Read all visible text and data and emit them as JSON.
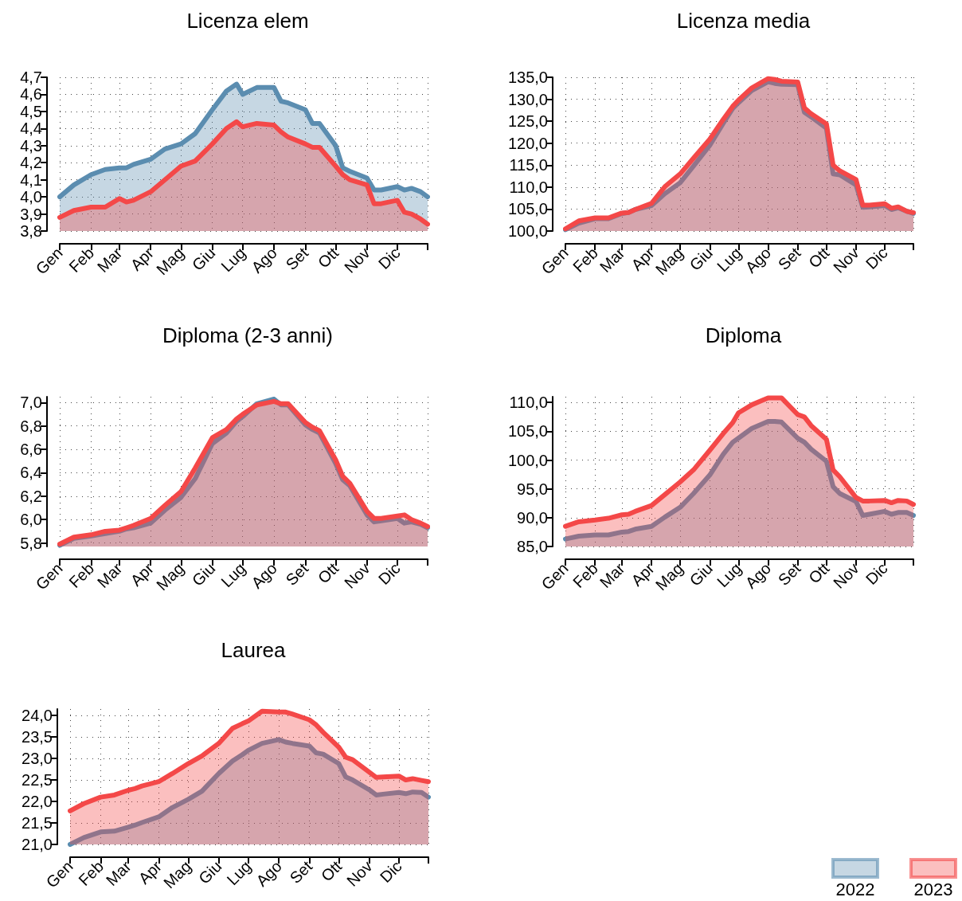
{
  "chart_data": [
    {
      "type": "area",
      "title": "Licenza elem",
      "x": [
        "--01-01",
        "--01-15",
        "--02-01",
        "--02-15",
        "--03-01",
        "--03-08",
        "--03-15",
        "--04-01",
        "--04-15",
        "--05-01",
        "--05-15",
        "--06-01",
        "--06-15",
        "--06-25",
        "--07-01",
        "--07-15",
        "--08-01",
        "--08-08",
        "--08-15",
        "--09-01",
        "--09-08",
        "--09-15",
        "--10-01",
        "--10-08",
        "--10-15",
        "--11-01",
        "--11-08",
        "--11-15",
        "--12-01",
        "--12-08",
        "--12-15",
        "--12-24",
        "--12-31"
      ],
      "series": [
        {
          "color": "#5b8db0",
          "values": [
            4.0,
            4.07,
            4.13,
            4.16,
            4.17,
            4.17,
            4.19,
            4.22,
            4.28,
            4.31,
            4.37,
            4.51,
            4.62,
            4.66,
            4.6,
            4.64,
            4.64,
            4.56,
            4.55,
            4.51,
            4.43,
            4.43,
            4.3,
            4.17,
            4.15,
            4.11,
            4.04,
            4.04,
            4.06,
            4.04,
            4.05,
            4.03,
            4.0
          ]
        },
        {
          "color": "#f44848",
          "values": [
            3.88,
            3.92,
            3.94,
            3.94,
            3.99,
            3.97,
            3.98,
            4.03,
            4.1,
            4.18,
            4.21,
            4.31,
            4.4,
            4.44,
            4.41,
            4.43,
            4.42,
            4.38,
            4.35,
            4.31,
            4.29,
            4.29,
            4.18,
            4.13,
            4.1,
            4.07,
            3.96,
            3.96,
            3.98,
            3.91,
            3.9,
            3.87,
            3.84
          ]
        }
      ],
      "xlim": [
        "--01-01",
        "--12-31"
      ],
      "xticks": [
        {
          "value": "--01-01",
          "label": "Gen"
        },
        {
          "value": "--02-01",
          "label": "Feb"
        },
        {
          "value": "--03-01",
          "label": "Mar"
        },
        {
          "value": "--04-01",
          "label": "Apr"
        },
        {
          "value": "--05-01",
          "label": "Mag"
        },
        {
          "value": "--06-01",
          "label": "Giu"
        },
        {
          "value": "--07-01",
          "label": "Lug"
        },
        {
          "value": "--08-01",
          "label": "Ago"
        },
        {
          "value": "--09-01",
          "label": "Set"
        },
        {
          "value": "--10-01",
          "label": "Ott"
        },
        {
          "value": "--11-01",
          "label": "Nov"
        },
        {
          "value": "--12-01",
          "label": "Dic"
        },
        {
          "value": "--12-31",
          "label": null
        }
      ],
      "ylim": [
        3.8,
        4.7
      ],
      "yticks": [
        {
          "value": 3.8,
          "label": "3,8"
        },
        {
          "value": 3.9,
          "label": "3,9"
        },
        {
          "value": 4.0,
          "label": "4,0"
        },
        {
          "value": 4.1,
          "label": "4,1"
        },
        {
          "value": 4.2,
          "label": "4,2"
        },
        {
          "value": 4.3,
          "label": "4,3"
        },
        {
          "value": 4.4,
          "label": "4,4"
        },
        {
          "value": 4.5,
          "label": "4,5"
        },
        {
          "value": 4.6,
          "label": "4,6"
        },
        {
          "value": 4.7,
          "label": "4,7"
        }
      ],
      "grid": true
    },
    {
      "type": "area",
      "title": "Licenza media",
      "x": [
        "--01-01",
        "--01-15",
        "--02-01",
        "--02-15",
        "--03-01",
        "--03-08",
        "--03-15",
        "--04-01",
        "--04-15",
        "--05-01",
        "--05-15",
        "--06-01",
        "--06-15",
        "--06-25",
        "--07-01",
        "--07-15",
        "--08-01",
        "--08-08",
        "--08-15",
        "--09-01",
        "--09-08",
        "--09-15",
        "--10-01",
        "--10-08",
        "--10-15",
        "--11-01",
        "--11-08",
        "--11-15",
        "--12-01",
        "--12-08",
        "--12-15",
        "--12-24",
        "--12-31"
      ],
      "series": [
        {
          "color": "#5b8db0",
          "values": [
            100.3,
            101.8,
            102.8,
            102.8,
            104.0,
            104.2,
            104.9,
            105.8,
            108.5,
            111.0,
            114.8,
            119.5,
            124.5,
            127.9,
            129.2,
            132.0,
            134.0,
            133.6,
            133.4,
            133.3,
            127.0,
            126.0,
            123.4,
            113.0,
            112.8,
            110.5,
            105.4,
            105.5,
            105.8,
            104.9,
            105.3,
            104.5,
            104.0
          ]
        },
        {
          "color": "#f44848",
          "values": [
            100.5,
            102.3,
            103.0,
            103.0,
            104.1,
            104.2,
            104.9,
            106.3,
            110.1,
            113.0,
            116.6,
            120.9,
            125.4,
            128.4,
            129.8,
            132.6,
            134.7,
            134.5,
            134.1,
            133.9,
            128.0,
            126.7,
            124.4,
            115.0,
            113.7,
            111.7,
            105.9,
            105.9,
            106.2,
            105.2,
            105.5,
            104.5,
            104.2
          ]
        }
      ],
      "xlim": [
        "--01-01",
        "--12-31"
      ],
      "xticks": [
        {
          "value": "--01-01",
          "label": "Gen"
        },
        {
          "value": "--02-01",
          "label": "Feb"
        },
        {
          "value": "--03-01",
          "label": "Mar"
        },
        {
          "value": "--04-01",
          "label": "Apr"
        },
        {
          "value": "--05-01",
          "label": "Mag"
        },
        {
          "value": "--06-01",
          "label": "Giu"
        },
        {
          "value": "--07-01",
          "label": "Lug"
        },
        {
          "value": "--08-01",
          "label": "Ago"
        },
        {
          "value": "--09-01",
          "label": "Set"
        },
        {
          "value": "--10-01",
          "label": "Ott"
        },
        {
          "value": "--11-01",
          "label": "Nov"
        },
        {
          "value": "--12-01",
          "label": "Dic"
        },
        {
          "value": "--12-31",
          "label": null
        }
      ],
      "ylim": [
        100,
        135
      ],
      "yticks": [
        {
          "value": 100,
          "label": "100,0"
        },
        {
          "value": 105,
          "label": "105,0"
        },
        {
          "value": 110,
          "label": "110,0"
        },
        {
          "value": 115,
          "label": "115,0"
        },
        {
          "value": 120,
          "label": "120,0"
        },
        {
          "value": 125,
          "label": "125,0"
        },
        {
          "value": 130,
          "label": "130,0"
        },
        {
          "value": 135,
          "label": "135,0"
        }
      ],
      "grid": true
    },
    {
      "type": "area",
      "title": "Diploma (2-3 anni)",
      "x": [
        "--01-01",
        "--01-15",
        "--02-01",
        "--02-15",
        "--03-01",
        "--03-08",
        "--03-15",
        "--04-01",
        "--04-15",
        "--05-01",
        "--05-15",
        "--06-01",
        "--06-15",
        "--06-25",
        "--07-01",
        "--07-15",
        "--08-01",
        "--08-08",
        "--08-15",
        "--09-01",
        "--09-08",
        "--09-15",
        "--10-01",
        "--10-08",
        "--10-15",
        "--11-01",
        "--11-08",
        "--11-15",
        "--12-01",
        "--12-08",
        "--12-15",
        "--12-24",
        "--12-31"
      ],
      "series": [
        {
          "color": "#5b8db0",
          "values": [
            5.78,
            5.84,
            5.86,
            5.88,
            5.9,
            5.92,
            5.93,
            5.97,
            6.08,
            6.19,
            6.35,
            6.65,
            6.74,
            6.84,
            6.88,
            6.99,
            7.03,
            6.98,
            6.98,
            6.81,
            6.77,
            6.74,
            6.48,
            6.34,
            6.29,
            6.04,
            5.98,
            5.99,
            6.01,
            5.97,
            5.98,
            5.96,
            5.93
          ]
        },
        {
          "color": "#f44848",
          "values": [
            5.79,
            5.85,
            5.87,
            5.9,
            5.91,
            5.93,
            5.95,
            6.01,
            6.12,
            6.24,
            6.44,
            6.7,
            6.77,
            6.86,
            6.9,
            6.98,
            7.01,
            6.99,
            6.99,
            6.83,
            6.79,
            6.76,
            6.51,
            6.37,
            6.31,
            6.07,
            6.01,
            6.01,
            6.03,
            6.04,
            6.0,
            5.97,
            5.94
          ]
        }
      ],
      "xlim": [
        "--01-01",
        "--12-31"
      ],
      "xticks": [
        {
          "value": "--01-01",
          "label": "Gen"
        },
        {
          "value": "--02-01",
          "label": "Feb"
        },
        {
          "value": "--03-01",
          "label": "Mar"
        },
        {
          "value": "--04-01",
          "label": "Apr"
        },
        {
          "value": "--05-01",
          "label": "Mag"
        },
        {
          "value": "--06-01",
          "label": "Giu"
        },
        {
          "value": "--07-01",
          "label": "Lug"
        },
        {
          "value": "--08-01",
          "label": "Ago"
        },
        {
          "value": "--09-01",
          "label": "Set"
        },
        {
          "value": "--10-01",
          "label": "Ott"
        },
        {
          "value": "--11-01",
          "label": "Nov"
        },
        {
          "value": "--12-01",
          "label": "Dic"
        },
        {
          "value": "--12-31",
          "label": null
        }
      ],
      "ylim": [
        5.77,
        7.05
      ],
      "yticks": [
        {
          "value": 5.8,
          "label": "5,8"
        },
        {
          "value": 6.0,
          "label": "6,0"
        },
        {
          "value": 6.2,
          "label": "6,2"
        },
        {
          "value": 6.4,
          "label": "6,4"
        },
        {
          "value": 6.6,
          "label": "6,6"
        },
        {
          "value": 6.8,
          "label": "6,8"
        },
        {
          "value": 7.0,
          "label": "7,0"
        }
      ],
      "grid": true
    },
    {
      "type": "area",
      "title": "Diploma",
      "x": [
        "--01-01",
        "--01-15",
        "--02-01",
        "--02-15",
        "--03-01",
        "--03-08",
        "--03-15",
        "--04-01",
        "--04-15",
        "--05-01",
        "--05-15",
        "--06-01",
        "--06-15",
        "--06-25",
        "--07-01",
        "--07-15",
        "--08-01",
        "--08-08",
        "--08-15",
        "--09-01",
        "--09-08",
        "--09-15",
        "--10-01",
        "--10-08",
        "--10-15",
        "--11-01",
        "--11-08",
        "--11-15",
        "--12-01",
        "--12-08",
        "--12-15",
        "--12-24",
        "--12-31"
      ],
      "series": [
        {
          "color": "#5b8db0",
          "values": [
            86.3,
            86.8,
            87.0,
            87.0,
            87.5,
            87.6,
            88.0,
            88.5,
            90.1,
            91.8,
            94.2,
            97.4,
            101.0,
            103.1,
            103.8,
            105.5,
            106.7,
            106.7,
            106.6,
            103.8,
            103.1,
            101.9,
            99.8,
            95.4,
            94.2,
            92.8,
            90.4,
            90.6,
            91.1,
            90.6,
            90.9,
            90.9,
            90.4
          ]
        },
        {
          "color": "#f44848",
          "values": [
            88.5,
            89.3,
            89.6,
            89.9,
            90.5,
            90.6,
            91.1,
            92.1,
            94.0,
            96.2,
            98.3,
            101.7,
            104.6,
            106.5,
            108.2,
            109.6,
            110.8,
            110.8,
            110.8,
            107.9,
            107.5,
            106.0,
            103.6,
            98.3,
            97.1,
            93.5,
            92.9,
            92.9,
            93.0,
            92.6,
            93.0,
            92.9,
            92.3
          ]
        }
      ],
      "xlim": [
        "--01-01",
        "--12-31"
      ],
      "xticks": [
        {
          "value": "--01-01",
          "label": "Gen"
        },
        {
          "value": "--02-01",
          "label": "Feb"
        },
        {
          "value": "--03-01",
          "label": "Mar"
        },
        {
          "value": "--04-01",
          "label": "Apr"
        },
        {
          "value": "--05-01",
          "label": "Mag"
        },
        {
          "value": "--06-01",
          "label": "Giu"
        },
        {
          "value": "--07-01",
          "label": "Lug"
        },
        {
          "value": "--08-01",
          "label": "Ago"
        },
        {
          "value": "--09-01",
          "label": "Set"
        },
        {
          "value": "--10-01",
          "label": "Ott"
        },
        {
          "value": "--11-01",
          "label": "Nov"
        },
        {
          "value": "--12-01",
          "label": "Dic"
        },
        {
          "value": "--12-31",
          "label": null
        }
      ],
      "ylim": [
        85,
        111
      ],
      "yticks": [
        {
          "value": 85,
          "label": "85,0"
        },
        {
          "value": 90,
          "label": "90,0"
        },
        {
          "value": 95,
          "label": "95,0"
        },
        {
          "value": 100,
          "label": "100,0"
        },
        {
          "value": 105,
          "label": "105,0"
        },
        {
          "value": 110,
          "label": "110,0"
        }
      ],
      "grid": true
    },
    {
      "type": "area",
      "title": "Laurea",
      "x": [
        "--01-01",
        "--01-15",
        "--02-01",
        "--02-15",
        "--03-01",
        "--03-08",
        "--03-15",
        "--04-01",
        "--04-15",
        "--05-01",
        "--05-15",
        "--06-01",
        "--06-15",
        "--06-25",
        "--07-01",
        "--07-15",
        "--08-01",
        "--08-08",
        "--08-15",
        "--09-01",
        "--09-08",
        "--09-15",
        "--10-01",
        "--10-08",
        "--10-15",
        "--11-01",
        "--11-08",
        "--11-15",
        "--12-01",
        "--12-08",
        "--12-15",
        "--12-24",
        "--12-31"
      ],
      "series": [
        {
          "name": "2022",
          "color": "#5b8db0",
          "values": [
            21.0,
            21.16,
            21.29,
            21.31,
            21.4,
            21.45,
            21.51,
            21.64,
            21.86,
            22.05,
            22.24,
            22.65,
            22.94,
            23.09,
            23.19,
            23.35,
            23.44,
            23.38,
            23.35,
            23.29,
            23.13,
            23.1,
            22.88,
            22.57,
            22.5,
            22.27,
            22.15,
            22.17,
            22.21,
            22.18,
            22.22,
            22.21,
            22.1
          ]
        },
        {
          "name": "2023",
          "color": "#f44848",
          "values": [
            21.78,
            21.95,
            22.1,
            22.15,
            22.26,
            22.3,
            22.36,
            22.46,
            22.65,
            22.88,
            23.06,
            23.35,
            23.7,
            23.81,
            23.87,
            24.1,
            24.08,
            24.08,
            24.03,
            23.9,
            23.78,
            23.61,
            23.26,
            23.03,
            22.97,
            22.68,
            22.56,
            22.57,
            22.59,
            22.5,
            22.53,
            22.49,
            22.46
          ]
        }
      ],
      "xlim": [
        "--01-01",
        "--12-31"
      ],
      "xticks": [
        {
          "value": "--01-01",
          "label": "Gen"
        },
        {
          "value": "--02-01",
          "label": "Feb"
        },
        {
          "value": "--03-01",
          "label": "Mar"
        },
        {
          "value": "--04-01",
          "label": "Apr"
        },
        {
          "value": "--05-01",
          "label": "Mag"
        },
        {
          "value": "--06-01",
          "label": "Giu"
        },
        {
          "value": "--07-01",
          "label": "Lug"
        },
        {
          "value": "--08-01",
          "label": "Ago"
        },
        {
          "value": "--09-01",
          "label": "Set"
        },
        {
          "value": "--10-01",
          "label": "Ott"
        },
        {
          "value": "--11-01",
          "label": "Nov"
        },
        {
          "value": "--12-01",
          "label": "Dic"
        },
        {
          "value": "--12-31",
          "label": null
        }
      ],
      "ylim": [
        21.0,
        24.15
      ],
      "yticks": [
        {
          "value": 21.0,
          "label": "21,0"
        },
        {
          "value": 21.5,
          "label": "21,5"
        },
        {
          "value": 22.0,
          "label": "22,0"
        },
        {
          "value": 22.5,
          "label": "22,5"
        },
        {
          "value": 23.0,
          "label": "23,0"
        },
        {
          "value": 23.5,
          "label": "23,5"
        },
        {
          "value": 24.0,
          "label": "24,0"
        }
      ],
      "grid": true,
      "legend": "bottom right"
    }
  ]
}
